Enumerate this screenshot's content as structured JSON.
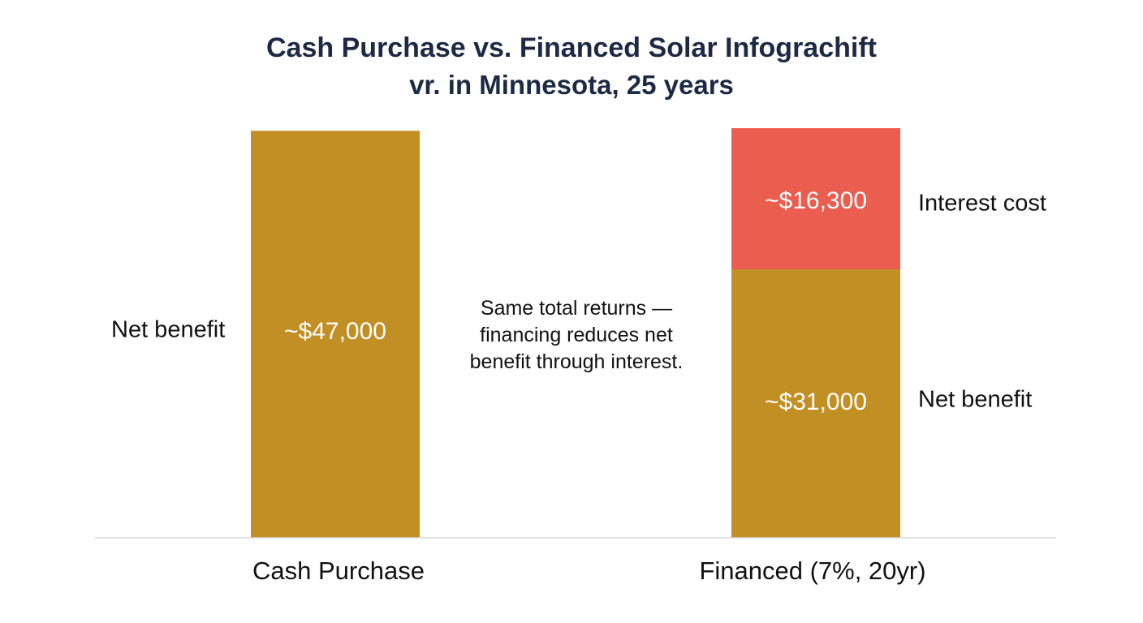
{
  "title": "Cash Purchase vs. Financed Solar Infograchift",
  "subtitle": "vr. in Minnesota, 25 years",
  "annotation": {
    "lines": [
      "Same total returns —",
      "financing reduces net",
      "benefit through interest."
    ]
  },
  "colors": {
    "net_benefit": "#c28f24",
    "interest_cost": "#eb5d4f",
    "text_dark": "#1e2a44",
    "axis": "#d9d9d9"
  },
  "chart_data": {
    "type": "bar",
    "stacked": true,
    "categories": [
      "Cash Purchase",
      "Financed (7%, 20yr)"
    ],
    "series": [
      {
        "name": "Net benefit",
        "values": [
          47000,
          31000
        ],
        "labels": [
          "~$47,000",
          "~$31,000"
        ],
        "color": "#c28f24"
      },
      {
        "name": "Interest cost",
        "values": [
          0,
          16300
        ],
        "labels": [
          "",
          "~$16,300"
        ],
        "color": "#eb5d4f"
      }
    ],
    "side_labels": {
      "cash_net_benefit": "Net benefit",
      "financed_interest": "Interest cost",
      "financed_net_benefit": "Net benefit"
    },
    "ylim": [
      0,
      47300
    ],
    "grid": false,
    "legend": "none",
    "title": "Cash Purchase vs. Financed Solar Infograchift",
    "xlabel": "",
    "ylabel": ""
  }
}
